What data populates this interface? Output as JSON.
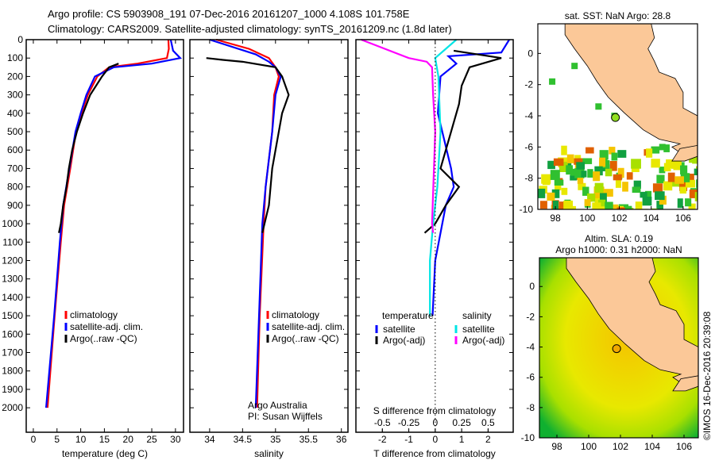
{
  "title_line1": "Argo profile: CS 5903908_191 07-Dec-2016 20161207_1000 4.108S 101.758E",
  "title_line2": "Climatology: CARS2009. Satellite-adjusted climatology: synTS_20161209.nc (1.8d later)",
  "credit": "©IMOS 16-Dec-2016 20:39:08",
  "chart_data": [
    {
      "type": "line",
      "xlabel": "temperature (deg C)",
      "xlim": [
        -1.5,
        31.7
      ],
      "ylim": [
        2133,
        0
      ],
      "xticks": [
        0,
        5,
        10,
        15,
        20,
        25,
        30
      ],
      "yticks": [
        0,
        100,
        200,
        300,
        400,
        500,
        600,
        700,
        800,
        900,
        1000,
        1100,
        1200,
        1300,
        1400,
        1500,
        1600,
        1700,
        1800,
        1900,
        2000
      ],
      "legend": [
        "climatology",
        "satellite-adj. clim.",
        "Argo(..raw -QC)"
      ],
      "series": [
        {
          "name": "climatology",
          "color": "#ff0000",
          "depth": [
            0,
            50,
            100,
            130,
            150,
            200,
            300,
            400,
            500,
            700,
            900,
            1100,
            1500,
            2000
          ],
          "value": [
            28.5,
            28.6,
            28.2,
            22,
            16,
            13.5,
            11.5,
            10.2,
            9,
            7.8,
            6.5,
            5.8,
            4.5,
            3
          ]
        },
        {
          "name": "satellite-adj. clim.",
          "color": "#0000ff",
          "depth": [
            0,
            60,
            100,
            130,
            150,
            200,
            300,
            400,
            500,
            700,
            900,
            1100,
            1500,
            2000
          ],
          "value": [
            29,
            29.5,
            31,
            25,
            17,
            13,
            11.2,
            10,
            8.9,
            7.6,
            6.3,
            5.6,
            4.4,
            2.7
          ]
        },
        {
          "name": "Argo(..raw -QC)",
          "color": "#000000",
          "depth": [
            130,
            150,
            200,
            300,
            400,
            500,
            600,
            700,
            800,
            900,
            1000,
            1050
          ],
          "value": [
            18,
            16,
            14.5,
            12,
            10.5,
            9.2,
            8.2,
            7.5,
            7,
            6.3,
            5.8,
            5.4
          ]
        }
      ]
    },
    {
      "type": "line",
      "xlabel": "salinity",
      "xlim": [
        33.7,
        36.1
      ],
      "ylim": [
        2133,
        0
      ],
      "xticks": [
        34,
        34.5,
        35,
        35.5,
        36
      ],
      "legend": [
        "climatology",
        "satellite-adj. clim.",
        "Argo(..raw -QC)"
      ],
      "annotation": [
        "Argo Australia",
        "PI: Susan Wijffels"
      ],
      "series": [
        {
          "name": "climatology",
          "color": "#ff0000",
          "depth": [
            0,
            50,
            100,
            150,
            200,
            300,
            500,
            800,
            1000,
            1500,
            2000
          ],
          "value": [
            34.1,
            34.6,
            34.9,
            35.0,
            35.05,
            34.98,
            34.95,
            34.85,
            34.82,
            34.76,
            34.72
          ]
        },
        {
          "name": "satellite-adj. clim.",
          "color": "#0000ff",
          "depth": [
            0,
            80,
            120,
            150,
            200,
            300,
            500,
            800,
            1000,
            1500,
            2000
          ],
          "value": [
            34.0,
            34.7,
            34.9,
            35.0,
            35.08,
            35.0,
            34.95,
            34.85,
            34.8,
            34.75,
            34.7
          ]
        },
        {
          "name": "Argo(..raw -QC)",
          "color": "#000000",
          "depth": [
            100,
            110,
            120,
            150,
            200,
            300,
            400,
            500,
            700,
            900,
            1050
          ],
          "value": [
            33.95,
            34.2,
            34.5,
            35.0,
            35.1,
            35.2,
            35.1,
            35.05,
            34.95,
            34.9,
            34.8
          ]
        }
      ]
    },
    {
      "type": "line",
      "xlabel": "T difference from climatology",
      "xlabel_top": "S difference from climatology",
      "xlim": [
        -3,
        2.95
      ],
      "ylim": [
        2133,
        0
      ],
      "xticks": [
        -2,
        -1,
        0,
        1,
        2
      ],
      "xticks_top": [
        -0.5,
        -0.25,
        0,
        0.25,
        0.5
      ],
      "xticklabels_top": [
        "-0.5",
        "-0.25",
        "0",
        "0.25",
        "0.5"
      ],
      "legend_titles": [
        "temperature",
        "salinity"
      ],
      "legend": [
        "satellite",
        "Argo(-adj)",
        "satellite",
        "Argo(-adj)"
      ],
      "series": [
        {
          "name": "T satellite",
          "color": "#0000ff",
          "depth": [
            0,
            70,
            90,
            130,
            200,
            400,
            700,
            800,
            900,
            1200,
            1500
          ],
          "value": [
            2.8,
            2.5,
            0.5,
            0.8,
            0.2,
            0.1,
            0.6,
            0.7,
            0.4,
            0,
            -0.1
          ]
        },
        {
          "name": "T Argo(-adj)",
          "color": "#000000",
          "depth": [
            60,
            100,
            150,
            250,
            350,
            500,
            700,
            800,
            900,
            1000,
            1050
          ],
          "value": [
            0.7,
            2.5,
            1.3,
            1.0,
            0.9,
            0.6,
            0.2,
            0.9,
            0.4,
            0,
            -0.4
          ]
        },
        {
          "name": "S satellite",
          "color": "#00e5e5",
          "units": "S",
          "depth": [
            0,
            100,
            200,
            500,
            800,
            1000,
            1200,
            1500
          ],
          "value": [
            0.2,
            0,
            0.03,
            0.05,
            0.02,
            -0.02,
            -0.05,
            -0.05
          ]
        },
        {
          "name": "S Argo(-adj)",
          "color": "#ff00ff",
          "units": "S",
          "depth": [
            0,
            100,
            120,
            150,
            300,
            500,
            1000,
            1050
          ],
          "value": [
            -0.7,
            -0.25,
            -0.08,
            -0.03,
            -0.02,
            0,
            -0.03,
            -0.02
          ]
        }
      ]
    }
  ],
  "map_sst": {
    "title": "sat. SST: NaN Argo: 28.8",
    "xticks": [
      98,
      100,
      102,
      104,
      106
    ],
    "yticks": [
      0,
      -2,
      -4,
      -6,
      -8,
      -10
    ],
    "float_lon": 101.758,
    "float_lat": -4.108
  },
  "map_sla": {
    "title1": "Altim. SLA: 0.19",
    "title2": "Argo h1000: 0.31 h2000: NaN",
    "xticks": [
      98,
      100,
      102,
      104,
      106
    ],
    "yticks": [
      0,
      -2,
      -4,
      -6,
      -8,
      -10
    ],
    "float_lon": 101.758,
    "float_lat": -4.108
  }
}
